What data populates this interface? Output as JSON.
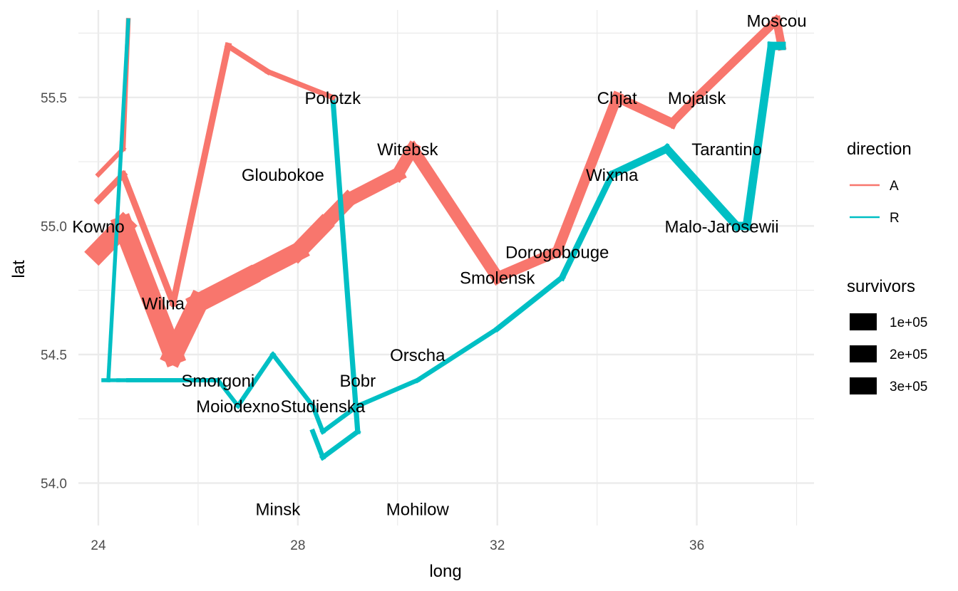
{
  "chart_data": {
    "type": "line",
    "xlabel": "long",
    "ylabel": "lat",
    "xlim": [
      23.6,
      38.35
    ],
    "ylim": [
      53.835,
      55.84
    ],
    "x_ticks": [
      24,
      28,
      32,
      36
    ],
    "x_tick_labels": [
      "24",
      "28",
      "32",
      "36"
    ],
    "y_ticks": [
      54.0,
      54.5,
      55.0,
      55.5
    ],
    "y_tick_labels": [
      "54.0",
      "54.5",
      "55.0",
      "55.5"
    ],
    "grid": true,
    "legend_position": "right",
    "legend": {
      "direction": {
        "title": "direction",
        "entries": [
          {
            "label": "A",
            "color": "#F8766D"
          },
          {
            "label": "R",
            "color": "#00BFC4"
          }
        ]
      },
      "survivors": {
        "title": "survivors",
        "entries": [
          "1e+05",
          "2e+05",
          "3e+05"
        ]
      }
    },
    "series": [
      {
        "group": 1,
        "direction": "A",
        "color": "#F8766D",
        "points": [
          {
            "long": 24.0,
            "lat": 54.9,
            "survivors": 340000
          },
          {
            "long": 24.5,
            "lat": 55.0,
            "survivors": 340000
          },
          {
            "long": 25.5,
            "lat": 54.5,
            "survivors": 340000
          },
          {
            "long": 26.0,
            "lat": 54.7,
            "survivors": 320000
          },
          {
            "long": 27.0,
            "lat": 54.8,
            "survivors": 300000
          },
          {
            "long": 28.0,
            "lat": 54.9,
            "survivors": 280000
          },
          {
            "long": 28.5,
            "lat": 55.0,
            "survivors": 240000
          },
          {
            "long": 29.0,
            "lat": 55.1,
            "survivors": 210000
          },
          {
            "long": 30.0,
            "lat": 55.2,
            "survivors": 180000
          },
          {
            "long": 30.3,
            "lat": 55.3,
            "survivors": 175000
          },
          {
            "long": 32.0,
            "lat": 54.8,
            "survivors": 145000
          },
          {
            "long": 33.2,
            "lat": 54.9,
            "survivors": 140000
          },
          {
            "long": 34.4,
            "lat": 55.5,
            "survivors": 127100
          },
          {
            "long": 35.5,
            "lat": 55.4,
            "survivors": 100000
          },
          {
            "long": 36.0,
            "lat": 55.5,
            "survivors": 100000
          },
          {
            "long": 37.6,
            "lat": 55.8,
            "survivors": 100000
          },
          {
            "long": 37.7,
            "lat": 55.7,
            "survivors": 100000
          }
        ]
      },
      {
        "group": 1,
        "direction": "R",
        "color": "#00BFC4",
        "points": [
          {
            "long": 37.7,
            "lat": 55.7,
            "survivors": 100000
          },
          {
            "long": 37.5,
            "lat": 55.7,
            "survivors": 98000
          },
          {
            "long": 37.0,
            "lat": 55.0,
            "survivors": 97000
          },
          {
            "long": 36.8,
            "lat": 55.0,
            "survivors": 96000
          },
          {
            "long": 35.4,
            "lat": 55.3,
            "survivors": 87000
          },
          {
            "long": 34.3,
            "lat": 55.2,
            "survivors": 55000
          },
          {
            "long": 33.3,
            "lat": 54.8,
            "survivors": 37000
          },
          {
            "long": 32.0,
            "lat": 54.6,
            "survivors": 24000
          },
          {
            "long": 30.4,
            "lat": 54.4,
            "survivors": 20000
          },
          {
            "long": 29.2,
            "lat": 54.3,
            "survivors": 20000
          },
          {
            "long": 28.5,
            "lat": 54.2,
            "survivors": 20000
          },
          {
            "long": 28.3,
            "lat": 54.3,
            "survivors": 20000
          },
          {
            "long": 27.5,
            "lat": 54.5,
            "survivors": 20000
          },
          {
            "long": 26.8,
            "lat": 54.3,
            "survivors": 12000
          },
          {
            "long": 26.4,
            "lat": 54.4,
            "survivors": 14000
          },
          {
            "long": 24.6,
            "lat": 54.4,
            "survivors": 8000
          },
          {
            "long": 24.4,
            "lat": 54.4,
            "survivors": 4000
          },
          {
            "long": 24.2,
            "lat": 54.4,
            "survivors": 4000
          },
          {
            "long": 24.1,
            "lat": 54.4,
            "survivors": 4000
          }
        ]
      },
      {
        "group": 2,
        "direction": "A",
        "color": "#F8766D",
        "points": [
          {
            "long": 24.0,
            "lat": 55.1,
            "survivors": 60000
          },
          {
            "long": 24.5,
            "lat": 55.2,
            "survivors": 60000
          },
          {
            "long": 25.5,
            "lat": 54.7,
            "survivors": 60000
          },
          {
            "long": 26.6,
            "lat": 55.7,
            "survivors": 40000
          },
          {
            "long": 27.4,
            "lat": 55.6,
            "survivors": 33000
          }
        ]
      },
      {
        "group": 2,
        "direction": "R",
        "color": "#00BFC4",
        "points": [
          {
            "long": 28.7,
            "lat": 55.5,
            "survivors": 33000
          },
          {
            "long": 29.2,
            "lat": 54.2,
            "survivors": 30000
          },
          {
            "long": 28.5,
            "lat": 54.1,
            "survivors": 28000
          },
          {
            "long": 28.3,
            "lat": 54.2,
            "survivors": 28000
          }
        ]
      },
      {
        "group": 3,
        "direction": "A",
        "color": "#F8766D",
        "points": [
          {
            "long": 24.0,
            "lat": 55.2,
            "survivors": 22000
          },
          {
            "long": 24.5,
            "lat": 55.3,
            "survivors": 22000
          },
          {
            "long": 24.6,
            "lat": 55.8,
            "survivors": 6000
          }
        ]
      },
      {
        "group": 3,
        "direction": "R",
        "color": "#00BFC4",
        "points": [
          {
            "long": 24.6,
            "lat": 55.8,
            "survivors": 6000
          },
          {
            "long": 24.2,
            "lat": 54.4,
            "survivors": 6000
          },
          {
            "long": 24.1,
            "lat": 54.4,
            "survivors": 6000
          }
        ]
      }
    ],
    "extra_segments": [
      {
        "direction": "A",
        "color": "#F8766D",
        "from": {
          "long": 27.4,
          "lat": 55.6
        },
        "to": {
          "long": 28.7,
          "lat": 55.5
        },
        "survivors": 33000
      }
    ],
    "cities": [
      {
        "name": "Kowno",
        "long": 24.0,
        "lat": 55.0
      },
      {
        "name": "Wilna",
        "long": 25.3,
        "lat": 54.7
      },
      {
        "name": "Smorgoni",
        "long": 26.4,
        "lat": 54.4
      },
      {
        "name": "Moiodexno",
        "long": 26.8,
        "lat": 54.3
      },
      {
        "name": "Gloubokoe",
        "long": 27.7,
        "lat": 55.2
      },
      {
        "name": "Minsk",
        "long": 27.6,
        "lat": 53.9
      },
      {
        "name": "Studienska",
        "long": 28.5,
        "lat": 54.3
      },
      {
        "name": "Polotzk",
        "long": 28.7,
        "lat": 55.5
      },
      {
        "name": "Bobr",
        "long": 29.2,
        "lat": 54.4
      },
      {
        "name": "Witebsk",
        "long": 30.2,
        "lat": 55.3
      },
      {
        "name": "Orscha",
        "long": 30.4,
        "lat": 54.5
      },
      {
        "name": "Mohilow",
        "long": 30.4,
        "lat": 53.9
      },
      {
        "name": "Smolensk",
        "long": 32.0,
        "lat": 54.8
      },
      {
        "name": "Dorogobouge",
        "long": 33.2,
        "lat": 54.9
      },
      {
        "name": "Wixma",
        "long": 34.3,
        "lat": 55.2
      },
      {
        "name": "Chjat",
        "long": 34.4,
        "lat": 55.5
      },
      {
        "name": "Mojaisk",
        "long": 36.0,
        "lat": 55.5
      },
      {
        "name": "Moscou",
        "long": 37.6,
        "lat": 55.8
      },
      {
        "name": "Tarantino",
        "long": 36.6,
        "lat": 55.3
      },
      {
        "name": "Malo-Jarosewii",
        "long": 36.5,
        "lat": 55.0
      }
    ]
  }
}
